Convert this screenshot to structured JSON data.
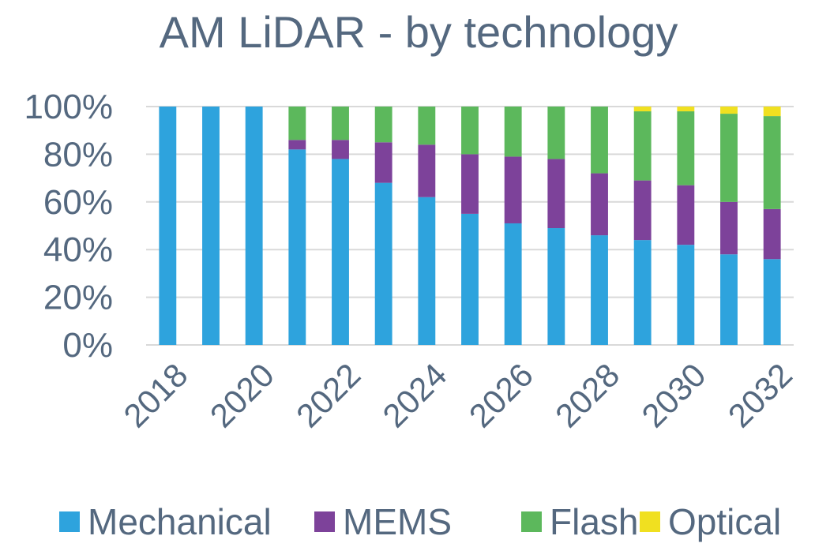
{
  "chart_data": {
    "type": "bar",
    "stacked": true,
    "title": "AM LiDAR - by technology",
    "xlabel": "",
    "ylabel": "",
    "ylim": [
      0,
      100
    ],
    "y_ticks": [
      "0%",
      "20%",
      "40%",
      "60%",
      "80%",
      "100%"
    ],
    "x_tick_labels": [
      "2018",
      "2020",
      "2022",
      "2024",
      "2026",
      "2028",
      "2030",
      "2032"
    ],
    "categories": [
      "2018",
      "2019",
      "2020",
      "2021",
      "2022",
      "2023",
      "2024",
      "2025",
      "2026",
      "2027",
      "2028",
      "2029",
      "2030",
      "2031",
      "2032"
    ],
    "series": [
      {
        "name": "Mechanical",
        "color": "#2ea3dd",
        "values": [
          100,
          100,
          100,
          82,
          78,
          68,
          62,
          55,
          51,
          49,
          46,
          44,
          42,
          38,
          36
        ]
      },
      {
        "name": "MEMS",
        "color": "#7d429a",
        "values": [
          0,
          0,
          0,
          4,
          8,
          17,
          22,
          25,
          28,
          29,
          26,
          25,
          25,
          22,
          21
        ]
      },
      {
        "name": "Flash",
        "color": "#5cb85c",
        "values": [
          0,
          0,
          0,
          14,
          14,
          15,
          16,
          20,
          21,
          22,
          28,
          29,
          31,
          37,
          39
        ]
      },
      {
        "name": "Optical",
        "color": "#f0e020",
        "values": [
          0,
          0,
          0,
          0,
          0,
          0,
          0,
          0,
          0,
          0,
          0,
          2,
          2,
          3,
          4
        ]
      }
    ],
    "legend_position": "bottom",
    "grid": true
  }
}
